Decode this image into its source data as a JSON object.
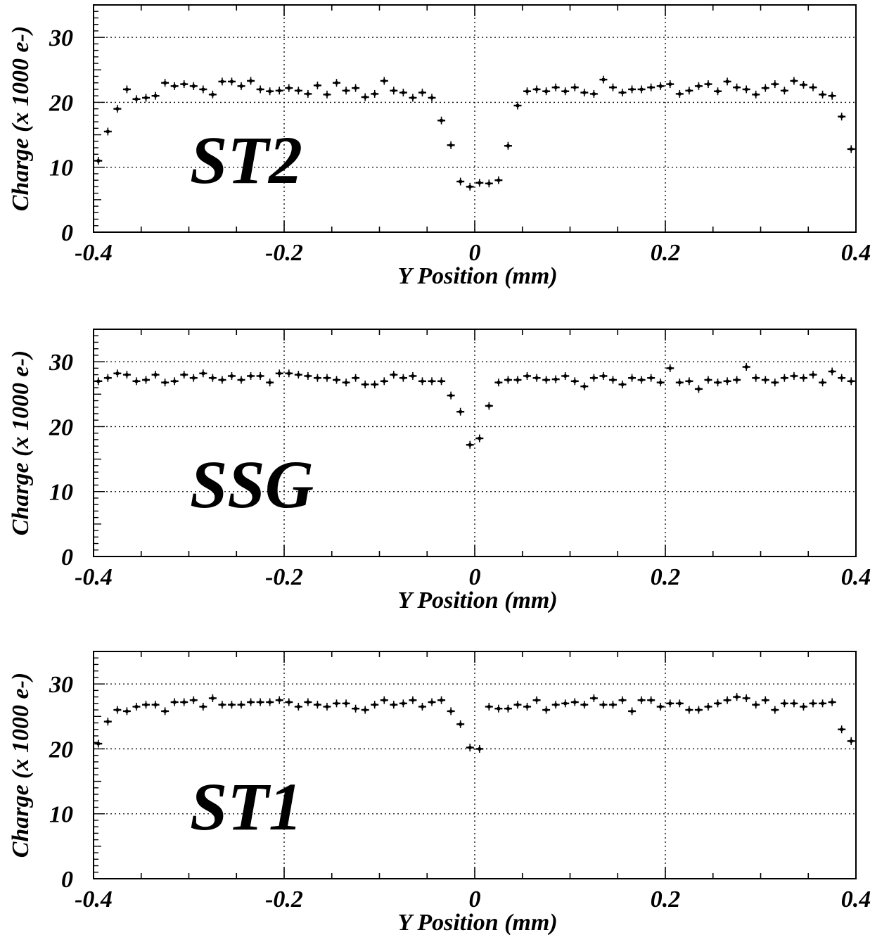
{
  "chart_data": [
    {
      "type": "scatter",
      "panel_label": "ST2",
      "xlabel": "Y Position (mm)",
      "ylabel": "Charge (x 1000 e-)",
      "xlim": [
        -0.4,
        0.4
      ],
      "ylim": [
        0,
        35
      ],
      "grid": true,
      "x_ticks": [
        "-0.4",
        "-0.2",
        "0",
        "0.2",
        "0.4"
      ],
      "y_ticks": [
        "0",
        "10",
        "20",
        "30"
      ],
      "series": [
        {
          "x": [
            -0.395,
            -0.385,
            -0.375,
            -0.365,
            -0.355,
            -0.345,
            -0.335,
            -0.325,
            -0.315,
            -0.305,
            -0.295,
            -0.285,
            -0.275,
            -0.265,
            -0.255,
            -0.245,
            -0.235,
            -0.225,
            -0.215,
            -0.205,
            -0.195,
            -0.185,
            -0.175,
            -0.165,
            -0.155,
            -0.145,
            -0.135,
            -0.125,
            -0.115,
            -0.105,
            -0.095,
            -0.085,
            -0.075,
            -0.065,
            -0.055,
            -0.045,
            -0.035,
            -0.025,
            -0.015,
            -0.005,
            0.005,
            0.015,
            0.025,
            0.035,
            0.045,
            0.055,
            0.065,
            0.075,
            0.085,
            0.095,
            0.105,
            0.115,
            0.125,
            0.135,
            0.145,
            0.155,
            0.165,
            0.175,
            0.185,
            0.195,
            0.205,
            0.215,
            0.225,
            0.235,
            0.245,
            0.255,
            0.265,
            0.275,
            0.285,
            0.295,
            0.305,
            0.315,
            0.325,
            0.335,
            0.345,
            0.355,
            0.365,
            0.375,
            0.385,
            0.395
          ],
          "y": [
            11.0,
            15.5,
            19.0,
            22.0,
            20.5,
            20.7,
            21.0,
            23.0,
            22.5,
            22.8,
            22.5,
            22.0,
            21.2,
            23.2,
            23.2,
            22.5,
            23.3,
            22.0,
            21.7,
            21.8,
            22.2,
            21.8,
            21.3,
            22.6,
            21.2,
            23.0,
            21.8,
            22.2,
            20.8,
            21.3,
            23.3,
            21.8,
            21.5,
            20.7,
            21.5,
            20.7,
            17.2,
            13.4,
            7.8,
            7.0,
            7.6,
            7.5,
            8.0,
            13.3,
            19.5,
            21.7,
            22.0,
            21.7,
            22.3,
            21.7,
            22.3,
            21.5,
            21.3,
            23.5,
            22.3,
            21.5,
            22.0,
            22.0,
            22.3,
            22.5,
            22.8,
            21.3,
            21.8,
            22.5,
            22.8,
            21.7,
            23.2,
            22.3,
            22.0,
            21.2,
            22.2,
            22.8,
            21.8,
            23.3,
            22.7,
            22.3,
            21.2,
            21.0,
            17.8,
            12.8
          ]
        }
      ]
    },
    {
      "type": "scatter",
      "panel_label": "SSG",
      "xlabel": "Y Position (mm)",
      "ylabel": "Charge (x 1000 e-)",
      "xlim": [
        -0.4,
        0.4
      ],
      "ylim": [
        0,
        35
      ],
      "grid": true,
      "x_ticks": [
        "-0.4",
        "-0.2",
        "0",
        "0.2",
        "0.4"
      ],
      "y_ticks": [
        "0",
        "10",
        "20",
        "30"
      ],
      "series": [
        {
          "x": [
            -0.395,
            -0.385,
            -0.375,
            -0.365,
            -0.355,
            -0.345,
            -0.335,
            -0.325,
            -0.315,
            -0.305,
            -0.295,
            -0.285,
            -0.275,
            -0.265,
            -0.255,
            -0.245,
            -0.235,
            -0.225,
            -0.215,
            -0.205,
            -0.195,
            -0.185,
            -0.175,
            -0.165,
            -0.155,
            -0.145,
            -0.135,
            -0.125,
            -0.115,
            -0.105,
            -0.095,
            -0.085,
            -0.075,
            -0.065,
            -0.055,
            -0.045,
            -0.035,
            -0.025,
            -0.015,
            -0.005,
            0.005,
            0.015,
            0.025,
            0.035,
            0.045,
            0.055,
            0.065,
            0.075,
            0.085,
            0.095,
            0.105,
            0.115,
            0.125,
            0.135,
            0.145,
            0.155,
            0.165,
            0.175,
            0.185,
            0.195,
            0.205,
            0.215,
            0.225,
            0.235,
            0.245,
            0.255,
            0.265,
            0.275,
            0.285,
            0.295,
            0.305,
            0.315,
            0.325,
            0.335,
            0.345,
            0.355,
            0.365,
            0.375,
            0.385,
            0.395
          ],
          "y": [
            27.0,
            27.5,
            28.2,
            28.0,
            27.0,
            27.2,
            28.0,
            26.8,
            27.0,
            28.0,
            27.5,
            28.2,
            27.5,
            27.2,
            27.8,
            27.2,
            27.8,
            27.8,
            26.8,
            28.2,
            28.2,
            28.0,
            27.8,
            27.5,
            27.5,
            27.2,
            26.8,
            27.5,
            26.5,
            26.5,
            27.0,
            28.0,
            27.5,
            27.8,
            27.0,
            27.0,
            27.0,
            24.8,
            22.3,
            17.2,
            18.2,
            23.2,
            26.8,
            27.2,
            27.2,
            27.8,
            27.5,
            27.2,
            27.3,
            27.8,
            27.0,
            26.2,
            27.5,
            27.8,
            27.2,
            26.5,
            27.5,
            27.2,
            27.5,
            26.8,
            29.0,
            26.8,
            27.0,
            25.8,
            27.2,
            26.8,
            27.0,
            27.2,
            29.2,
            27.5,
            27.2,
            26.8,
            27.5,
            27.8,
            27.5,
            28.0,
            26.8,
            28.5,
            27.5,
            27.0
          ]
        }
      ]
    },
    {
      "type": "scatter",
      "panel_label": "ST1",
      "xlabel": "Y Position (mm)",
      "ylabel": "Charge (x 1000 e-)",
      "xlim": [
        -0.4,
        0.4
      ],
      "ylim": [
        0,
        35
      ],
      "grid": true,
      "x_ticks": [
        "-0.4",
        "-0.2",
        "0",
        "0.2",
        "0.4"
      ],
      "y_ticks": [
        "0",
        "10",
        "20",
        "30"
      ],
      "series": [
        {
          "x": [
            -0.395,
            -0.385,
            -0.375,
            -0.365,
            -0.355,
            -0.345,
            -0.335,
            -0.325,
            -0.315,
            -0.305,
            -0.295,
            -0.285,
            -0.275,
            -0.265,
            -0.255,
            -0.245,
            -0.235,
            -0.225,
            -0.215,
            -0.205,
            -0.195,
            -0.185,
            -0.175,
            -0.165,
            -0.155,
            -0.145,
            -0.135,
            -0.125,
            -0.115,
            -0.105,
            -0.095,
            -0.085,
            -0.075,
            -0.065,
            -0.055,
            -0.045,
            -0.035,
            -0.025,
            -0.015,
            -0.005,
            0.005,
            0.015,
            0.025,
            0.035,
            0.045,
            0.055,
            0.065,
            0.075,
            0.085,
            0.095,
            0.105,
            0.115,
            0.125,
            0.135,
            0.145,
            0.155,
            0.165,
            0.175,
            0.185,
            0.195,
            0.205,
            0.215,
            0.225,
            0.235,
            0.245,
            0.255,
            0.265,
            0.275,
            0.285,
            0.295,
            0.305,
            0.315,
            0.325,
            0.335,
            0.345,
            0.355,
            0.365,
            0.375,
            0.385,
            0.395
          ],
          "y": [
            20.8,
            24.2,
            26.0,
            25.8,
            26.5,
            26.8,
            26.8,
            25.8,
            27.2,
            27.2,
            27.5,
            26.5,
            27.8,
            26.8,
            26.8,
            26.8,
            27.2,
            27.2,
            27.2,
            27.5,
            27.2,
            26.5,
            27.2,
            26.8,
            26.5,
            27.0,
            27.0,
            26.2,
            26.0,
            26.8,
            27.5,
            26.8,
            27.0,
            27.5,
            26.5,
            27.2,
            27.5,
            25.8,
            23.8,
            20.2,
            20.0,
            26.5,
            26.2,
            26.2,
            26.8,
            26.5,
            27.5,
            26.0,
            26.8,
            27.0,
            27.2,
            26.8,
            27.8,
            26.8,
            26.8,
            27.5,
            25.8,
            27.5,
            27.5,
            26.5,
            27.0,
            27.0,
            26.0,
            26.0,
            26.5,
            27.0,
            27.5,
            28.0,
            27.8,
            26.8,
            27.5,
            26.0,
            27.0,
            27.0,
            26.5,
            27.0,
            27.0,
            27.2,
            23.0,
            21.2
          ]
        }
      ]
    }
  ]
}
